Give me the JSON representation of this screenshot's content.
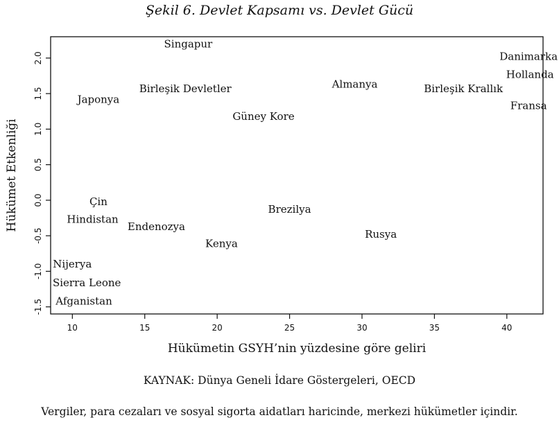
{
  "figure": {
    "title": "Şekil 6. Devlet Kapsamı vs. Devlet Gücü",
    "source": "KAYNAK: Dünya Geneli İdare Göstergeleri, OECD",
    "note": "Vergiler, para cezaları ve sosyal sigorta aidatları haricinde, merkezi hükümetler içindir."
  },
  "chart_data": {
    "type": "scatter",
    "title": "Şekil 6. Devlet Kapsamı vs. Devlet Gücü",
    "xlabel": "Hükümetin GSYH’nin yüzdesine göre geliri",
    "ylabel": "Hükümet Etkenliği",
    "xlim": [
      8.5,
      42.5
    ],
    "ylim": [
      -1.6,
      2.3
    ],
    "xticks": [
      10,
      15,
      20,
      25,
      30,
      35,
      40
    ],
    "yticks": [
      -1.5,
      -1.0,
      -0.5,
      0.0,
      0.5,
      1.0,
      1.5,
      2.0
    ],
    "xtick_labels": [
      "10",
      "15",
      "20",
      "25",
      "30",
      "35",
      "40"
    ],
    "ytick_labels": [
      "-1.5",
      "-1.0",
      "-0.5",
      "0.0",
      "0.5",
      "1.0",
      "1.5",
      "2.0"
    ],
    "grid": false,
    "marker": "country-label",
    "points": [
      {
        "label": "Singapur",
        "x": 18.0,
        "y": 2.2
      },
      {
        "label": "Danimarka",
        "x": 41.5,
        "y": 2.02
      },
      {
        "label": "Hollanda",
        "x": 41.6,
        "y": 1.77
      },
      {
        "label": "Almanya",
        "x": 29.5,
        "y": 1.63
      },
      {
        "label": "Birleşik Devletler",
        "x": 17.8,
        "y": 1.57
      },
      {
        "label": "Birleşik Krallık",
        "x": 37.0,
        "y": 1.57
      },
      {
        "label": "Japonya",
        "x": 11.8,
        "y": 1.42
      },
      {
        "label": "Fransa",
        "x": 41.5,
        "y": 1.33
      },
      {
        "label": "Güney Kore",
        "x": 23.2,
        "y": 1.18
      },
      {
        "label": "Çin",
        "x": 11.8,
        "y": -0.02
      },
      {
        "label": "Brezilya",
        "x": 25.0,
        "y": -0.13
      },
      {
        "label": "Hindistan",
        "x": 11.4,
        "y": -0.27
      },
      {
        "label": "Endenozya",
        "x": 15.8,
        "y": -0.37
      },
      {
        "label": "Rusya",
        "x": 31.3,
        "y": -0.48
      },
      {
        "label": "Kenya",
        "x": 20.3,
        "y": -0.61
      },
      {
        "label": "Nijerya",
        "x": 10.0,
        "y": -0.9
      },
      {
        "label": "Sierra Leone",
        "x": 11.0,
        "y": -1.16
      },
      {
        "label": "Afganistan",
        "x": 10.8,
        "y": -1.42
      }
    ]
  }
}
